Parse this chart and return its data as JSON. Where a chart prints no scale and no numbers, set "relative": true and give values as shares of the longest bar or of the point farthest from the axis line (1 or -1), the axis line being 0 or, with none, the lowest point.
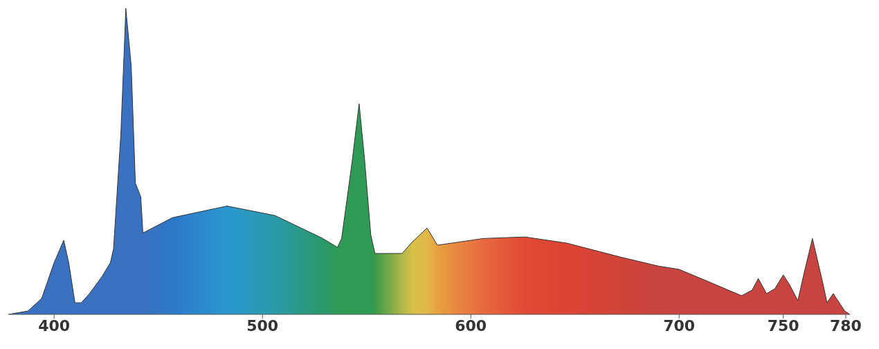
{
  "chart_data": {
    "type": "area",
    "relative": true,
    "x": [
      378.2,
      387.4,
      394,
      400,
      404.6,
      407,
      410,
      413,
      417,
      423,
      427,
      428.5,
      432,
      433.8,
      434.4,
      437,
      439,
      441.6,
      442.6,
      456.8,
      483,
      506,
      529,
      536,
      538,
      543,
      546.4,
      549,
      552,
      554,
      567,
      572,
      579,
      584,
      606,
      626,
      646,
      672,
      690,
      700,
      712,
      722,
      730,
      735,
      738,
      742,
      746,
      750,
      753,
      757,
      760,
      764,
      769,
      771,
      774,
      779.5,
      782
    ],
    "values": [
      0,
      0.011,
      0.052,
      0.169,
      0.242,
      0.169,
      0.038,
      0.038,
      0.068,
      0.124,
      0.169,
      0.214,
      0.587,
      0.892,
      1,
      0.813,
      0.429,
      0.384,
      0.266,
      0.316,
      0.354,
      0.323,
      0.248,
      0.219,
      0.248,
      0.497,
      0.688,
      0.508,
      0.26,
      0.199,
      0.199,
      0.237,
      0.282,
      0.226,
      0.248,
      0.253,
      0.233,
      0.187,
      0.158,
      0.147,
      0.113,
      0.084,
      0.061,
      0.079,
      0.117,
      0.068,
      0.084,
      0.129,
      0.097,
      0.045,
      0.135,
      0.248,
      0.102,
      0.038,
      0.068,
      0.011,
      0
    ],
    "colors": [
      "#3a70c0",
      "#3a70c0",
      "#3a70c0",
      "#3a70c0",
      "#3a70c0",
      "#3a70c0",
      "#3a70c0",
      "#3a70c0",
      "#3a70c0",
      "#3a70c0",
      "#3a70c0",
      "#3a70c0",
      "#3a70c0",
      "#3a70c0",
      "#3a70c0",
      "#3a70c0",
      "#3a70c0",
      "#3a70c0",
      "#3a70c0",
      "#2d78c8",
      "#2a98d0",
      "#2a9aa8",
      "#2a9868",
      "#2e9a55",
      "#2e9a55",
      "#2e9a55",
      "#2e9a55",
      "#2e9a55",
      "#2e9a55",
      "#3a9a48",
      "#b0b848",
      "#d8c048",
      "#e0b848",
      "#e8a040",
      "#e86840",
      "#e04a34",
      "#dc4434",
      "#d04438",
      "#c84440",
      "#c84440",
      "#c84440",
      "#c84440",
      "#c84440",
      "#c84440",
      "#c84440",
      "#c84440",
      "#c84440",
      "#c84440",
      "#c84440",
      "#c84440",
      "#c84440",
      "#c84440",
      "#c84440",
      "#c84440",
      "#c84440",
      "#c84440",
      "#c84440"
    ],
    "xlim": [
      378,
      782
    ],
    "xticks": [
      400,
      500,
      600,
      700,
      750,
      780
    ]
  }
}
